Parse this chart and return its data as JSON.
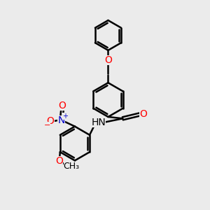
{
  "bg_color": "#ebebeb",
  "bond_color": "#000000",
  "bond_width": 1.8,
  "atom_colors": {
    "O": "#ff0000",
    "N": "#0000cc",
    "C": "#000000",
    "H": "#000000"
  },
  "font_size": 10,
  "font_size_small": 9
}
